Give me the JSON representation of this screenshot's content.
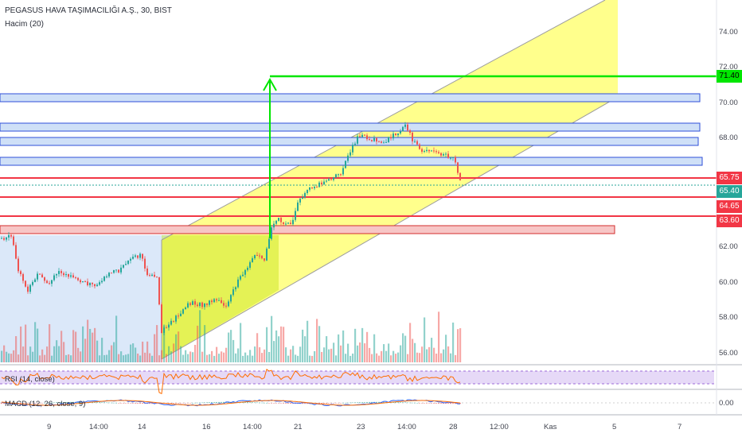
{
  "header": {
    "symbol": "PEGASUS HAVA TAŞIMACILIĞI A.Ş., 30, BIST",
    "volume_label": "Hacim (20)"
  },
  "price_axis": {
    "ticks": [
      "74.00",
      "72.00",
      "70.00",
      "68.00",
      "62.00",
      "60.00",
      "58.00",
      "56.00"
    ]
  },
  "price_tags": [
    {
      "label": "71.40",
      "color": "#00e600",
      "text_color": "#000000"
    },
    {
      "label": "65.75",
      "color": "#f23645",
      "text_color": "#ffffff"
    },
    {
      "label": "65.40",
      "color": "#26a69a",
      "text_color": "#ffffff"
    },
    {
      "label": "64.65",
      "color": "#f23645",
      "text_color": "#ffffff"
    },
    {
      "label": "63.60",
      "color": "#f23645",
      "text_color": "#ffffff"
    }
  ],
  "time_axis": {
    "ticks": [
      "9",
      "14:00",
      "14",
      "16",
      "14:00",
      "21",
      "23",
      "14:00",
      "28",
      "12:00",
      "Kas",
      "5",
      "7"
    ]
  },
  "rsi": {
    "label": "RSI (14, close)"
  },
  "macd": {
    "label": "MACD (12, 26, close, 9)",
    "tick": "0.00"
  },
  "colors": {
    "up": "#26a69a",
    "down": "#ef5350",
    "target": "#00e600",
    "resistance": "#f23645",
    "zone_fill": "#ffff00"
  }
}
